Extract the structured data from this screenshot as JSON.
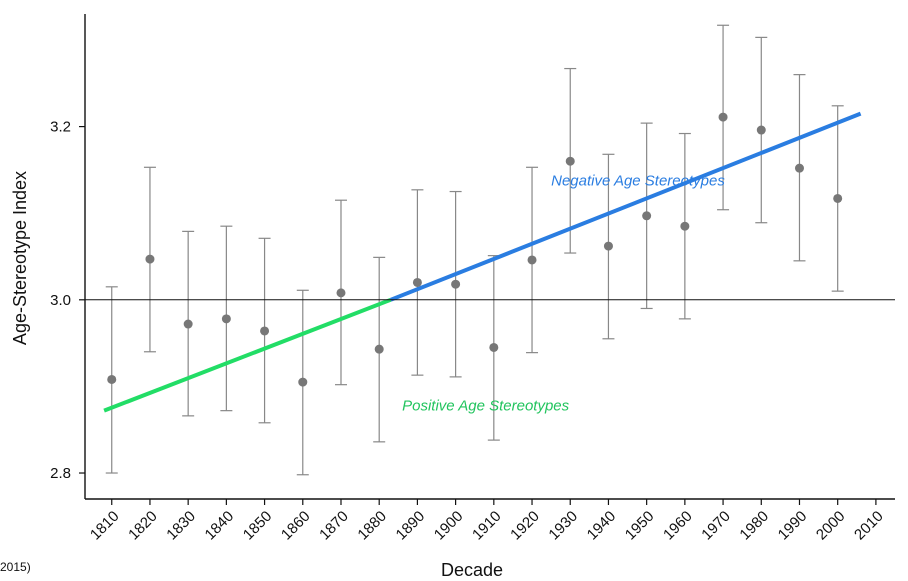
{
  "chart_data": {
    "type": "scatter",
    "title": "",
    "xlabel": "Decade",
    "ylabel": "Age-Stereotype Index",
    "x_ticks": [
      "1810",
      "1820",
      "1830",
      "1840",
      "1850",
      "1860",
      "1870",
      "1880",
      "1890",
      "1900",
      "1910",
      "1920",
      "1930",
      "1940",
      "1950",
      "1960",
      "1970",
      "1980",
      "1990",
      "2000",
      "2010"
    ],
    "y_ticks": [
      "2.8",
      "3.0",
      "3.2"
    ],
    "ylim": [
      2.77,
      3.33
    ],
    "xlim": [
      1803,
      2015
    ],
    "reference_line_y": 3.0,
    "points": [
      {
        "x": 1810,
        "y": 2.908,
        "low": 2.8,
        "high": 3.015
      },
      {
        "x": 1820,
        "y": 3.047,
        "low": 2.94,
        "high": 3.153
      },
      {
        "x": 1830,
        "y": 2.972,
        "low": 2.866,
        "high": 3.079
      },
      {
        "x": 1840,
        "y": 2.978,
        "low": 2.872,
        "high": 3.085
      },
      {
        "x": 1850,
        "y": 2.964,
        "low": 2.858,
        "high": 3.071
      },
      {
        "x": 1860,
        "y": 2.905,
        "low": 2.798,
        "high": 3.011
      },
      {
        "x": 1870,
        "y": 3.008,
        "low": 2.902,
        "high": 3.115
      },
      {
        "x": 1880,
        "y": 2.943,
        "low": 2.836,
        "high": 3.049
      },
      {
        "x": 1890,
        "y": 3.02,
        "low": 2.913,
        "high": 3.127
      },
      {
        "x": 1900,
        "y": 3.018,
        "low": 2.911,
        "high": 3.125
      },
      {
        "x": 1910,
        "y": 2.945,
        "low": 2.838,
        "high": 3.051
      },
      {
        "x": 1920,
        "y": 3.046,
        "low": 2.939,
        "high": 3.153
      },
      {
        "x": 1930,
        "y": 3.16,
        "low": 3.054,
        "high": 3.267
      },
      {
        "x": 1940,
        "y": 3.062,
        "low": 2.955,
        "high": 3.168
      },
      {
        "x": 1950,
        "y": 3.097,
        "low": 2.99,
        "high": 3.204
      },
      {
        "x": 1960,
        "y": 3.085,
        "low": 2.978,
        "high": 3.192
      },
      {
        "x": 1970,
        "y": 3.211,
        "low": 3.104,
        "high": 3.317
      },
      {
        "x": 1980,
        "y": 3.196,
        "low": 3.089,
        "high": 3.303
      },
      {
        "x": 1990,
        "y": 3.152,
        "low": 3.045,
        "high": 3.26
      },
      {
        "x": 2000,
        "y": 3.117,
        "low": 3.01,
        "high": 3.224
      }
    ],
    "trend_segments": [
      {
        "label": "Positive Age Stereotypes",
        "color": "#22dd66",
        "x1": 1808,
        "y1": 2.872,
        "x2": 1883,
        "y2": 3.0
      },
      {
        "label": "Negative Age Stereotypes",
        "color": "#2a7de1",
        "x1": 1883,
        "y1": 3.0,
        "x2": 2006,
        "y2": 3.215
      }
    ],
    "annotations": [
      {
        "text": "Positive Age Stereotypes",
        "color": "#22c45e",
        "x": 1886,
        "y": 2.872
      },
      {
        "text": "Negative Age Stereotypes",
        "color": "#2a7de1",
        "x": 1925,
        "y": 3.132
      }
    ],
    "point_color": "#777777",
    "grid": false
  },
  "corner_text": "2015)"
}
